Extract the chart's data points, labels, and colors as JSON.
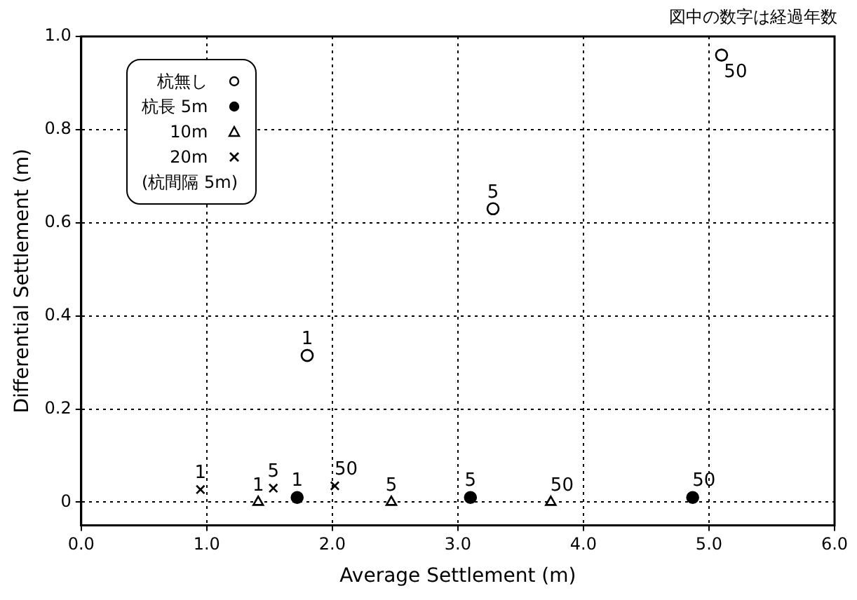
{
  "chart_data": {
    "type": "scatter",
    "xlabel": "Average Settlement (m)",
    "ylabel": "Differential Settlement (m)",
    "xlim": [
      0,
      6
    ],
    "xticks": [
      {
        "value": 0,
        "label": "0.0"
      },
      {
        "value": 1,
        "label": "1.0"
      },
      {
        "value": 2,
        "label": "2.0"
      },
      {
        "value": 3,
        "label": "3.0"
      },
      {
        "value": 4,
        "label": "4.0"
      },
      {
        "value": 5,
        "label": "5.0"
      },
      {
        "value": 6,
        "label": "6.0"
      }
    ],
    "ylim": [
      -0.05,
      1.0
    ],
    "yticks": [
      0,
      0.2,
      0.4,
      0.6,
      0.8,
      {
        "value": 1,
        "label": "1.0"
      }
    ],
    "grid": true,
    "legend": "top left",
    "series": [
      {
        "name": "杭無し",
        "color": "#000000",
        "marker": "circle",
        "x": [
          1.8,
          3.28,
          5.1
        ],
        "values": [
          0.315,
          0.63,
          0.96
        ]
      },
      {
        "name": "杭長 5m",
        "color": "#000000",
        "marker": "circle",
        "x": [
          1.72,
          3.1,
          4.87
        ],
        "values": [
          0.01,
          0.01,
          0.01
        ]
      },
      {
        "name": "10m",
        "color": "#000000",
        "marker": "triangle",
        "x": [
          1.41,
          2.47,
          3.74
        ],
        "values": [
          0,
          0,
          0
        ]
      },
      {
        "name": "20m",
        "color": "#000000",
        "marker": "cross",
        "x": [
          0.95,
          1.53,
          2.02
        ],
        "values": [
          0.027,
          0.03,
          0.035
        ]
      }
    ],
    "annotations": [
      "図中の数字は経過年数",
      "(杭間隔 5m)",
      {
        "text": "1",
        "x": 1.8,
        "y": 0.315
      },
      {
        "text": "5",
        "x": 3.28,
        "y": 0.63
      },
      {
        "text": "50",
        "x": 5.1,
        "y": 0.96
      },
      {
        "text": "1",
        "x": 1.72,
        "y": 0.01
      },
      {
        "text": "5",
        "x": 3.1,
        "y": 0.01
      },
      {
        "text": "50",
        "x": 4.87,
        "y": 0.01
      },
      {
        "text": "1",
        "x": 1.41,
        "y": 0
      },
      {
        "text": "5",
        "x": 2.47,
        "y": 0
      },
      {
        "text": "50",
        "x": 3.74,
        "y": 0
      },
      {
        "text": "1",
        "x": 0.95,
        "y": 0.027
      },
      {
        "text": "5",
        "x": 1.53,
        "y": 0.03
      },
      {
        "text": "50",
        "x": 2.02,
        "y": 0.035
      }
    ]
  }
}
